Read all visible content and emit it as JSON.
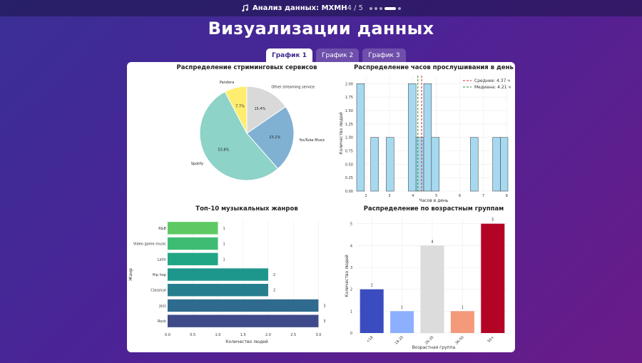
{
  "header": {
    "app_title": "Анализ данных: МХМН",
    "counter": "4 / 5",
    "page_title": "Визуализации данных"
  },
  "tabs": [
    {
      "label": "График 1",
      "active": true
    },
    {
      "label": "График 2",
      "active": false
    },
    {
      "label": "График 3",
      "active": false
    }
  ],
  "chart_data": [
    {
      "type": "pie",
      "title": "Распределение стриминговых сервисов",
      "labels": [
        "Spotify",
        "YouTube Music",
        "Other streaming service",
        "Pandora"
      ],
      "values": [
        53.8,
        23.1,
        15.4,
        7.7
      ],
      "value_labels": [
        "53.8%",
        "23.1%",
        "15.4%",
        "7.7%"
      ],
      "colors": [
        "#8dd3c7",
        "#80b1d3",
        "#d9d9d9",
        "#ffed6f"
      ]
    },
    {
      "type": "bar",
      "subtype": "histogram",
      "title": "Распределение часов прослушивания в день",
      "xlabel": "Часов в день",
      "ylabel": "Количество людей",
      "xlim": [
        1.6,
        8.05
      ],
      "ylim": [
        0,
        2.15
      ],
      "xticks": [
        "2",
        "3",
        "4",
        "5",
        "6",
        "7",
        "8"
      ],
      "yticks": [
        "0.00",
        "0.25",
        "0.50",
        "0.75",
        "1.00",
        "1.25",
        "1.50",
        "1.75",
        "2.00"
      ],
      "bins": [
        {
          "x0": 1.6,
          "x1": 1.93,
          "count": 2
        },
        {
          "x0": 2.2,
          "x1": 2.53,
          "count": 1
        },
        {
          "x0": 2.86,
          "x1": 3.19,
          "count": 1
        },
        {
          "x0": 3.8,
          "x1": 4.13,
          "count": 2
        },
        {
          "x0": 4.13,
          "x1": 4.46,
          "count": 1
        },
        {
          "x0": 4.46,
          "x1": 4.79,
          "count": 2
        },
        {
          "x0": 4.79,
          "x1": 5.12,
          "count": 1
        },
        {
          "x0": 6.45,
          "x1": 6.78,
          "count": 1
        },
        {
          "x0": 7.4,
          "x1": 7.73,
          "count": 1
        },
        {
          "x0": 7.73,
          "x1": 8.05,
          "count": 1
        }
      ],
      "mean": 4.37,
      "median": 4.21,
      "legend": [
        "Среднее: 4.37 ч",
        "Медиана: 4.21 ч"
      ],
      "legend_position": "top-right",
      "grid": true
    },
    {
      "type": "bar",
      "orientation": "horizontal",
      "title": "Топ-10 музыкальных жанров",
      "xlabel": "Количество людей",
      "ylabel": "Жанр",
      "categories": [
        "R&B",
        "Video game music",
        "Latin",
        "Hip hop",
        "Classical",
        "Jazz",
        "Rock"
      ],
      "values": [
        1,
        1,
        1,
        2,
        2,
        3,
        3
      ],
      "xlim": [
        0,
        3.15
      ],
      "xticks": [
        "0.0",
        "0.5",
        "1.0",
        "1.5",
        "2.0",
        "2.5",
        "3.0"
      ],
      "colors": [
        "#5ec962",
        "#3fbc73",
        "#21a685",
        "#1f968b",
        "#277f8e",
        "#2f6b8e",
        "#3e4a89"
      ],
      "grid": true
    },
    {
      "type": "bar",
      "title": "Распределение по возрастным группам",
      "xlabel": "Возрастная группа",
      "ylabel": "Количество людей",
      "categories": [
        "<18",
        "18-25",
        "26-35",
        "36-50",
        "50+"
      ],
      "values": [
        2,
        1,
        4,
        1,
        5
      ],
      "ylim": [
        0,
        5.25
      ],
      "yticks": [
        "0",
        "1",
        "2",
        "3",
        "4",
        "5"
      ],
      "colors": [
        "#3b4cc0",
        "#8db0fe",
        "#dddcdc",
        "#f49a7b",
        "#b40426"
      ],
      "grid": true
    }
  ]
}
